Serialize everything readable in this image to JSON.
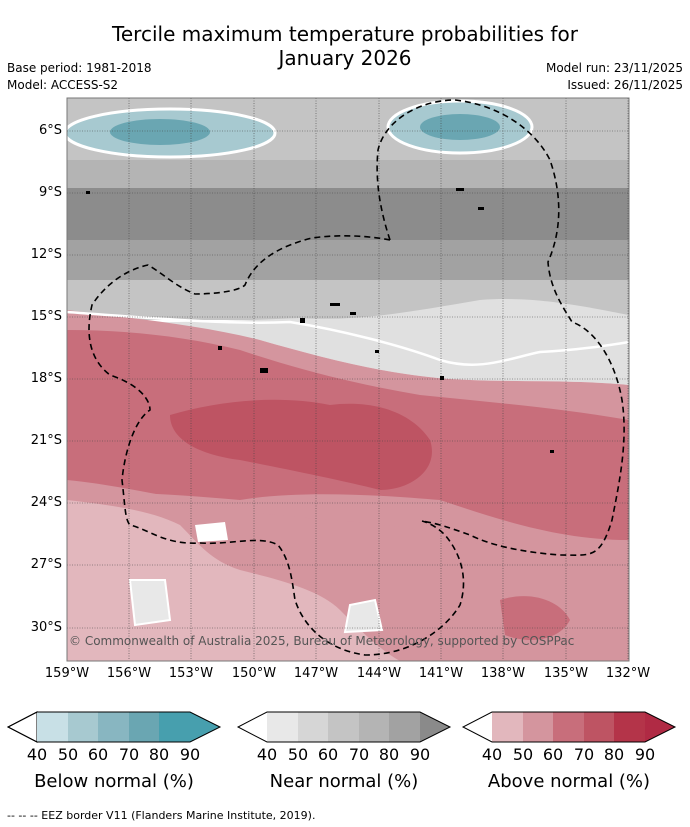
{
  "title_line1": "Tercile maximum temperature probabilities for",
  "title_line2": "January 2026",
  "base_period": "Base period: 1981-2018",
  "model": "Model: ACCESS-S2",
  "model_run": "Model run: 23/11/2025",
  "issued": "Issued: 26/11/2025",
  "copyright": "© Commonwealth of Australia 2025, Bureau of Meteorology, supported by COSPPac",
  "lat_labels": [
    "6°S",
    "9°S",
    "12°S",
    "15°S",
    "18°S",
    "21°S",
    "24°S",
    "27°S",
    "30°S"
  ],
  "lon_labels": [
    "159°W",
    "156°W",
    "153°W",
    "150°W",
    "147°W",
    "144°W",
    "141°W",
    "138°W",
    "135°W",
    "132°W"
  ],
  "legends": [
    {
      "title": "Below normal (%)",
      "ticks": [
        "40",
        "50",
        "60",
        "70",
        "80",
        "90"
      ],
      "colors": [
        "#c8e0e6",
        "#a7c9d0",
        "#88b6c1",
        "#6aa6b2",
        "#479fae"
      ]
    },
    {
      "title": "Near normal (%)",
      "ticks": [
        "40",
        "50",
        "60",
        "70",
        "80",
        "90"
      ],
      "colors": [
        "#e8e8e8",
        "#d6d6d6",
        "#c4c4c4",
        "#b4b4b4",
        "#a2a2a2"
      ]
    },
    {
      "title": "Above normal (%)",
      "ticks": [
        "40",
        "50",
        "60",
        "70",
        "80",
        "90"
      ],
      "colors": [
        "#e2b7bd",
        "#d4959e",
        "#c86e7b",
        "#be5463",
        "#b43449"
      ]
    }
  ],
  "footer": "--  --  -- EEZ border V11 (Flanders Marine Institute, 2019)."
}
